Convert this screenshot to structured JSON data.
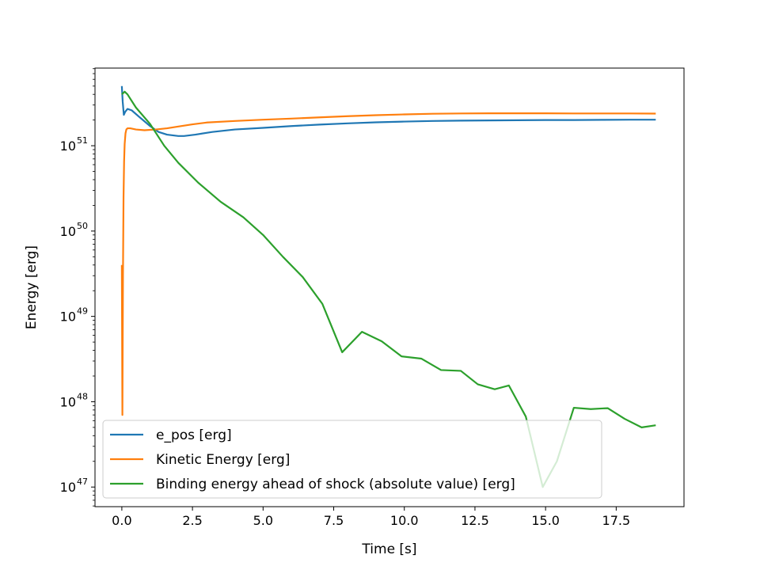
{
  "chart_data": {
    "type": "line",
    "title": "",
    "xlabel": "Time [s]",
    "ylabel": "Energy [erg]",
    "xlim": [
      -0.95,
      19.9
    ],
    "ylim_log10": [
      46.77,
      51.91
    ],
    "yscale": "log",
    "grid": false,
    "legend_position": "lower-left",
    "x_ticks": [
      0.0,
      2.5,
      5.0,
      7.5,
      10.0,
      12.5,
      15.0,
      17.5
    ],
    "x_tick_labels": [
      "0.0",
      "2.5",
      "5.0",
      "7.5",
      "10.0",
      "12.5",
      "15.0",
      "17.5"
    ],
    "y_ticks_log10": [
      47,
      48,
      49,
      50,
      51
    ],
    "y_tick_base": "10",
    "y_tick_exponents": [
      "47",
      "48",
      "49",
      "50",
      "51"
    ],
    "series": [
      {
        "name": "e_pos [erg]",
        "color": "#1f77b4",
        "x": [
          0.0,
          0.03,
          0.07,
          0.12,
          0.2,
          0.35,
          0.6,
          1.0,
          1.3,
          1.6,
          2.0,
          2.2,
          2.6,
          3.2,
          4.0,
          5.0,
          6.0,
          7.0,
          8.0,
          9.0,
          10.0,
          11.0,
          12.0,
          13.0,
          14.0,
          15.0,
          16.0,
          17.0,
          18.0,
          18.9
        ],
        "y": [
          5e+51,
          3.3e+51,
          2.3e+51,
          2.5e+51,
          2.7e+51,
          2.6e+51,
          2.2e+51,
          1.7e+51,
          1.45e+51,
          1.35e+51,
          1.3e+51,
          1.3e+51,
          1.35e+51,
          1.45e+51,
          1.55e+51,
          1.62e+51,
          1.7e+51,
          1.77e+51,
          1.83e+51,
          1.88e+51,
          1.92e+51,
          1.95e+51,
          1.97e+51,
          1.98e+51,
          1.99e+51,
          2e+51,
          2e+51,
          2.01e+51,
          2.02e+51,
          2.02e+51
        ]
      },
      {
        "name": "Kinetic Energy [erg]",
        "color": "#ff7f0e",
        "x": [
          0.0,
          0.02,
          0.04,
          0.06,
          0.08,
          0.1,
          0.13,
          0.16,
          0.2,
          0.3,
          0.5,
          0.8,
          1.2,
          1.6,
          2.0,
          2.5,
          3.0,
          4.0,
          5.0,
          6.0,
          7.0,
          8.0,
          9.0,
          10.0,
          11.0,
          12.0,
          13.0,
          14.0,
          15.0,
          16.0,
          17.0,
          18.0,
          18.9
        ],
        "y": [
          4e+49,
          7e+47,
          3e+49,
          2.5e+50,
          6.5e+50,
          1.05e+51,
          1.4e+51,
          1.55e+51,
          1.6e+51,
          1.6e+51,
          1.55e+51,
          1.52e+51,
          1.55e+51,
          1.6e+51,
          1.68e+51,
          1.78e+51,
          1.87e+51,
          1.95e+51,
          2.02e+51,
          2.08e+51,
          2.15e+51,
          2.22e+51,
          2.28e+51,
          2.33e+51,
          2.37e+51,
          2.39e+51,
          2.4e+51,
          2.4e+51,
          2.4e+51,
          2.39e+51,
          2.39e+51,
          2.39e+51,
          2.38e+51
        ]
      },
      {
        "name": "Binding energy ahead of shock (absolute value) [erg]",
        "color": "#2ca02c",
        "x": [
          0.0,
          0.1,
          0.2,
          0.5,
          1.0,
          1.5,
          2.0,
          2.7,
          3.5,
          4.3,
          5.0,
          5.7,
          6.4,
          7.1,
          7.8,
          8.5,
          9.2,
          9.9,
          10.6,
          11.3,
          12.0,
          12.6,
          13.2,
          13.7,
          14.3,
          14.9,
          15.4,
          16.0,
          16.6,
          17.2,
          17.8,
          18.4,
          18.9
        ],
        "y": [
          4e+51,
          4.3e+51,
          4e+51,
          2.8e+51,
          1.8e+51,
          1e+51,
          6.3e+50,
          3.7e+50,
          2.2e+50,
          1.45e+50,
          9e+49,
          5e+49,
          2.9e+49,
          1.4e+49,
          3.8e+48,
          6.6e+48,
          5.1e+48,
          3.4e+48,
          3.2e+48,
          2.35e+48,
          2.3e+48,
          1.6e+48,
          1.4e+48,
          1.55e+48,
          6.7e+47,
          1e+47,
          2e+47,
          8.5e+47,
          8.2e+47,
          8.4e+47,
          6.3e+47,
          5e+47,
          5.3e+47
        ]
      }
    ]
  }
}
